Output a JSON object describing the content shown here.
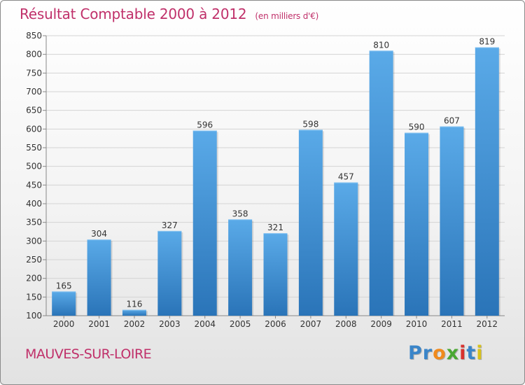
{
  "chart_data": {
    "type": "bar",
    "title": "Résultat Comptable 2000 à 2012",
    "subtitle": "(en milliers d'€)",
    "categories": [
      "2000",
      "2001",
      "2002",
      "2003",
      "2004",
      "2005",
      "2006",
      "2007",
      "2008",
      "2009",
      "2010",
      "2011",
      "2012"
    ],
    "values": [
      165,
      304,
      116,
      327,
      596,
      358,
      321,
      598,
      457,
      810,
      590,
      607,
      819
    ],
    "ylim": [
      100,
      850
    ],
    "yticks": [
      100,
      150,
      200,
      250,
      300,
      350,
      400,
      450,
      500,
      550,
      600,
      650,
      700,
      750,
      800,
      850
    ],
    "grid": true,
    "bar_color": "#3d8fd4",
    "bar_color_light": "#5aaae8",
    "bar_color_dark": "#2a74b8"
  },
  "footer": {
    "commune": "MAUVES-SUR-LOIRE",
    "logo_letters": [
      {
        "char": "P",
        "color": "#3a85c9"
      },
      {
        "char": "r",
        "color": "#3a85c9"
      },
      {
        "char": "o",
        "color": "#f08a1c"
      },
      {
        "char": "x",
        "color": "#4aa832"
      },
      {
        "char": "i",
        "color": "#d8322e"
      },
      {
        "char": "t",
        "color": "#3a85c9"
      },
      {
        "char": "i",
        "color": "#d8c21c"
      }
    ]
  }
}
